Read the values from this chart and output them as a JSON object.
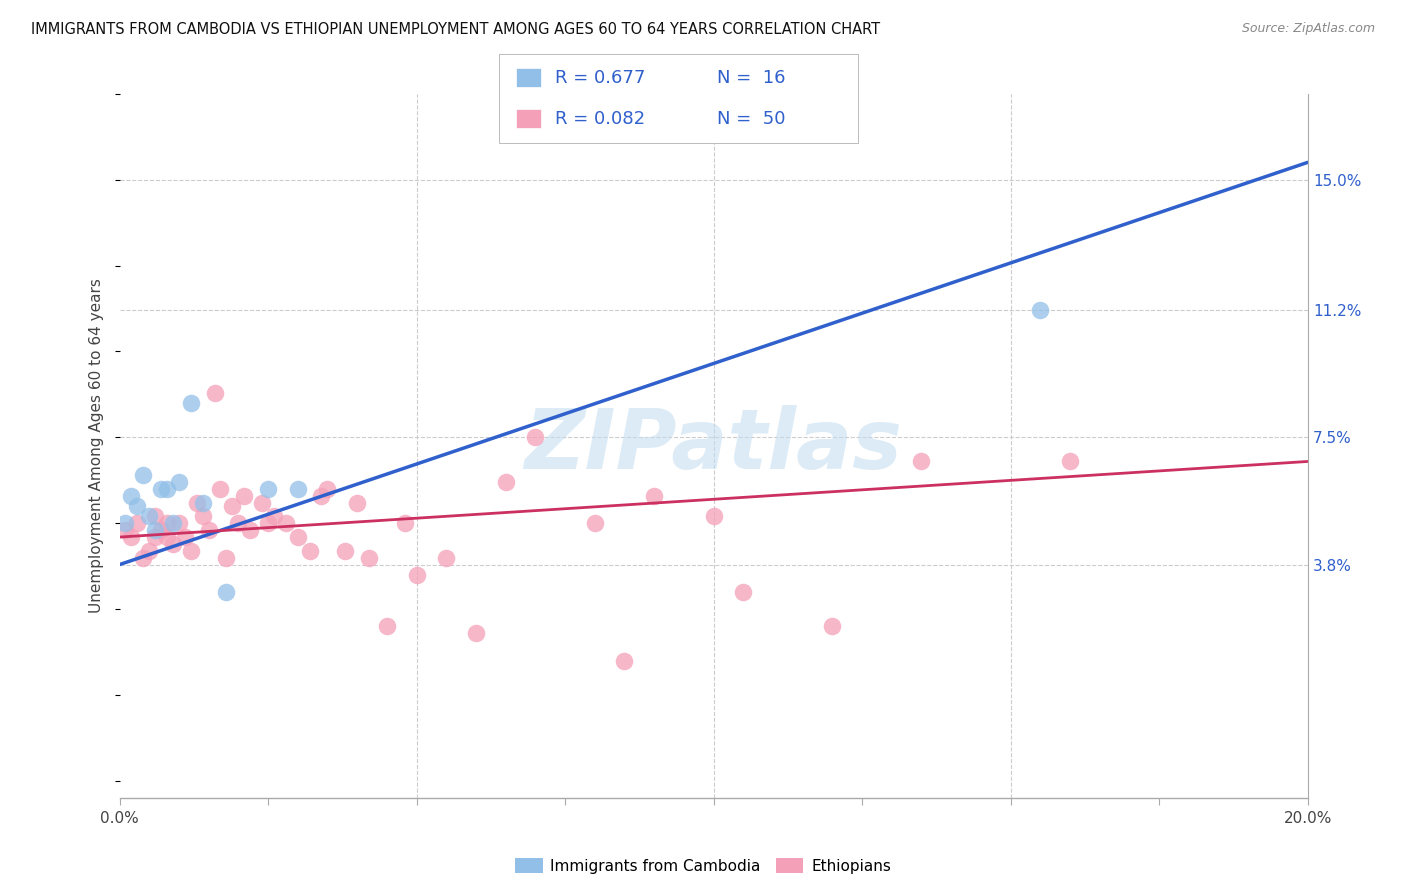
{
  "title": "IMMIGRANTS FROM CAMBODIA VS ETHIOPIAN UNEMPLOYMENT AMONG AGES 60 TO 64 YEARS CORRELATION CHART",
  "source": "Source: ZipAtlas.com",
  "ylabel": "Unemployment Among Ages 60 to 64 years",
  "xlim": [
    0.0,
    0.2
  ],
  "ylim": [
    -0.03,
    0.175
  ],
  "ytick_right_vals": [
    0.038,
    0.075,
    0.112,
    0.15
  ],
  "ytick_right_labels": [
    "3.8%",
    "7.5%",
    "11.2%",
    "15.0%"
  ],
  "legend_R1": "R = 0.677",
  "legend_N1": "N =  16",
  "legend_R2": "R = 0.082",
  "legend_N2": "N =  50",
  "legend_label1": "Immigrants from Cambodia",
  "legend_label2": "Ethiopians",
  "blue_color": "#92bfe8",
  "pink_color": "#f4a0b8",
  "trend_blue": "#3060cc",
  "trend_pink": "#cc3060",
  "watermark": "ZIPatlas",
  "blue_x": [
    0.001,
    0.002,
    0.003,
    0.004,
    0.005,
    0.006,
    0.007,
    0.008,
    0.009,
    0.01,
    0.012,
    0.014,
    0.018,
    0.025,
    0.03,
    0.155
  ],
  "blue_y": [
    0.05,
    0.058,
    0.055,
    0.064,
    0.052,
    0.048,
    0.06,
    0.06,
    0.05,
    0.062,
    0.085,
    0.056,
    0.03,
    0.06,
    0.06,
    0.112
  ],
  "pink_x": [
    0.001,
    0.002,
    0.003,
    0.004,
    0.005,
    0.006,
    0.006,
    0.007,
    0.008,
    0.008,
    0.009,
    0.01,
    0.011,
    0.012,
    0.013,
    0.014,
    0.015,
    0.016,
    0.017,
    0.018,
    0.019,
    0.02,
    0.021,
    0.022,
    0.024,
    0.025,
    0.026,
    0.028,
    0.03,
    0.032,
    0.034,
    0.035,
    0.038,
    0.04,
    0.042,
    0.045,
    0.048,
    0.05,
    0.055,
    0.06,
    0.065,
    0.07,
    0.08,
    0.085,
    0.09,
    0.1,
    0.105,
    0.12,
    0.135,
    0.16
  ],
  "pink_y": [
    0.048,
    0.046,
    0.05,
    0.04,
    0.042,
    0.052,
    0.046,
    0.048,
    0.05,
    0.046,
    0.044,
    0.05,
    0.046,
    0.042,
    0.056,
    0.052,
    0.048,
    0.088,
    0.06,
    0.04,
    0.055,
    0.05,
    0.058,
    0.048,
    0.056,
    0.05,
    0.052,
    0.05,
    0.046,
    0.042,
    0.058,
    0.06,
    0.042,
    0.056,
    0.04,
    0.02,
    0.05,
    0.035,
    0.04,
    0.018,
    0.062,
    0.075,
    0.05,
    0.01,
    0.058,
    0.052,
    0.03,
    0.02,
    0.068,
    0.068
  ],
  "blue_trend_x": [
    0.0,
    0.2
  ],
  "blue_trend_y": [
    0.038,
    0.155
  ],
  "pink_trend_x": [
    0.0,
    0.2
  ],
  "pink_trend_y": [
    0.046,
    0.068
  ]
}
